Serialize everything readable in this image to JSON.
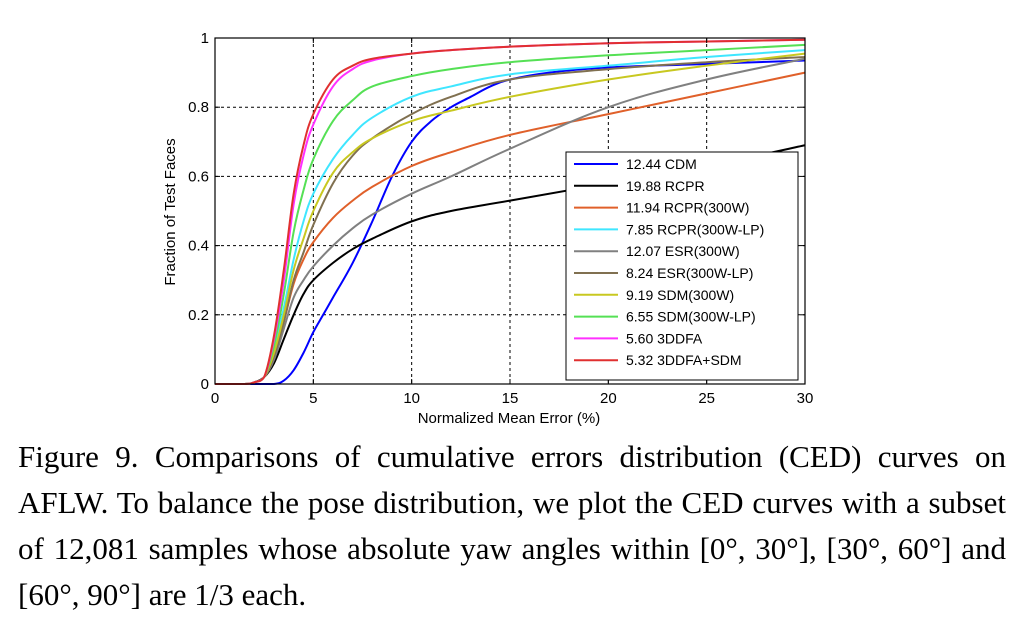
{
  "chart_data": {
    "type": "line",
    "title": "",
    "xlabel": "Normalized Mean Error (%)",
    "ylabel": "Fraction of Test Faces",
    "xlim": [
      0,
      30
    ],
    "ylim": [
      0,
      1
    ],
    "xticks": [
      0,
      5,
      10,
      15,
      20,
      25,
      30
    ],
    "yticks": [
      0,
      0.2,
      0.4,
      0.6,
      0.8,
      1
    ],
    "xtick_labels": [
      "0",
      "5",
      "10",
      "15",
      "20",
      "25",
      "30"
    ],
    "ytick_labels": [
      "0",
      "0.2",
      "0.4",
      "0.6",
      "0.8",
      "1"
    ],
    "grid": true,
    "legend_position": "bottom-right",
    "series": [
      {
        "name": "12.44 CDM",
        "color": "#0000ff",
        "x": [
          0,
          2,
          3,
          3.5,
          4,
          4.5,
          5,
          5.5,
          6,
          7,
          8,
          9,
          10,
          11,
          12,
          13,
          14,
          15,
          17,
          20,
          25,
          30
        ],
        "y": [
          0,
          0,
          0,
          0.01,
          0.04,
          0.09,
          0.15,
          0.2,
          0.25,
          0.35,
          0.47,
          0.6,
          0.7,
          0.76,
          0.8,
          0.83,
          0.86,
          0.88,
          0.9,
          0.915,
          0.925,
          0.935
        ]
      },
      {
        "name": "19.88 RCPR",
        "color": "#000000",
        "x": [
          0,
          1.5,
          2,
          2.5,
          3,
          3.5,
          4,
          4.5,
          5,
          6,
          7,
          8,
          10,
          12,
          15,
          20,
          25,
          30
        ],
        "y": [
          0,
          0,
          0.005,
          0.02,
          0.06,
          0.13,
          0.2,
          0.26,
          0.3,
          0.35,
          0.39,
          0.42,
          0.47,
          0.5,
          0.53,
          0.58,
          0.63,
          0.69
        ]
      },
      {
        "name": "11.94 RCPR(300W)",
        "color": "#e0602a",
        "x": [
          0,
          1.5,
          2,
          2.5,
          3,
          3.5,
          4,
          4.5,
          5,
          6,
          7,
          8,
          10,
          12,
          15,
          20,
          25,
          30
        ],
        "y": [
          0,
          0,
          0.005,
          0.02,
          0.08,
          0.18,
          0.29,
          0.36,
          0.41,
          0.48,
          0.53,
          0.57,
          0.63,
          0.67,
          0.72,
          0.78,
          0.84,
          0.9
        ]
      },
      {
        "name": "7.85 RCPR(300W-LP)",
        "color": "#3fe6ff",
        "x": [
          0,
          1.5,
          2,
          2.5,
          3,
          3.5,
          4,
          4.5,
          5,
          6,
          7,
          8,
          10,
          12,
          15,
          20,
          25,
          30
        ],
        "y": [
          0,
          0,
          0.005,
          0.02,
          0.1,
          0.22,
          0.36,
          0.47,
          0.55,
          0.65,
          0.72,
          0.77,
          0.83,
          0.86,
          0.895,
          0.92,
          0.945,
          0.965
        ]
      },
      {
        "name": "12.07 ESR(300W)",
        "color": "#808080",
        "x": [
          0,
          1.5,
          2,
          2.5,
          3,
          3.5,
          4,
          4.5,
          5,
          6,
          7,
          8,
          10,
          12,
          15,
          20,
          25,
          30
        ],
        "y": [
          0,
          0,
          0.005,
          0.02,
          0.07,
          0.16,
          0.25,
          0.3,
          0.34,
          0.4,
          0.45,
          0.49,
          0.55,
          0.6,
          0.68,
          0.8,
          0.88,
          0.94
        ]
      },
      {
        "name": "8.24 ESR(300W-LP)",
        "color": "#807050",
        "x": [
          0,
          1.5,
          2,
          2.5,
          3,
          3.5,
          4,
          4.5,
          5,
          6,
          7,
          8,
          10,
          12,
          15,
          20,
          25,
          30
        ],
        "y": [
          0,
          0,
          0.005,
          0.02,
          0.08,
          0.18,
          0.3,
          0.38,
          0.46,
          0.58,
          0.66,
          0.71,
          0.78,
          0.83,
          0.88,
          0.91,
          0.93,
          0.945
        ]
      },
      {
        "name": "9.19 SDM(300W)",
        "color": "#c8c820",
        "x": [
          0,
          1.5,
          2,
          2.5,
          3,
          3.5,
          4,
          4.5,
          5,
          6,
          7,
          8,
          10,
          12,
          15,
          20,
          25,
          30
        ],
        "y": [
          0,
          0,
          0.005,
          0.02,
          0.09,
          0.2,
          0.33,
          0.42,
          0.5,
          0.61,
          0.67,
          0.71,
          0.76,
          0.79,
          0.83,
          0.88,
          0.92,
          0.955
        ]
      },
      {
        "name": "6.55 SDM(300W-LP)",
        "color": "#55e055",
        "x": [
          0,
          1.5,
          2,
          2.5,
          3,
          3.5,
          4,
          4.5,
          5,
          6,
          7,
          8,
          10,
          12,
          15,
          20,
          25,
          30
        ],
        "y": [
          0,
          0,
          0.005,
          0.02,
          0.11,
          0.26,
          0.44,
          0.56,
          0.65,
          0.76,
          0.82,
          0.86,
          0.89,
          0.91,
          0.93,
          0.95,
          0.965,
          0.98
        ]
      },
      {
        "name": "5.60 3DDFA",
        "color": "#ff30ff",
        "x": [
          0,
          1.5,
          2,
          2.5,
          3,
          3.5,
          4,
          4.5,
          5,
          6,
          7,
          8,
          10,
          12,
          15,
          20,
          25,
          30
        ],
        "y": [
          0,
          0,
          0.005,
          0.02,
          0.13,
          0.3,
          0.52,
          0.66,
          0.75,
          0.86,
          0.91,
          0.935,
          0.955,
          0.965,
          0.975,
          0.985,
          0.99,
          0.995
        ]
      },
      {
        "name": "5.32 3DDFA+SDM",
        "color": "#e03030",
        "x": [
          0,
          1.5,
          2,
          2.5,
          3,
          3.5,
          4,
          4.5,
          5,
          6,
          7,
          8,
          10,
          12,
          15,
          20,
          25,
          30
        ],
        "y": [
          0,
          0,
          0.005,
          0.02,
          0.14,
          0.33,
          0.55,
          0.69,
          0.78,
          0.88,
          0.92,
          0.94,
          0.955,
          0.965,
          0.975,
          0.985,
          0.99,
          0.995
        ]
      }
    ]
  },
  "caption": {
    "text": "Figure 9. Comparisons of cumulative errors distribution (CED) curves on AFLW. To balance the pose distribution, we plot the CED curves with a subset of 12,081 samples whose absolute yaw angles within [0°, 30°], [30°, 60°] and [60°, 90°] are 1/3 each."
  }
}
